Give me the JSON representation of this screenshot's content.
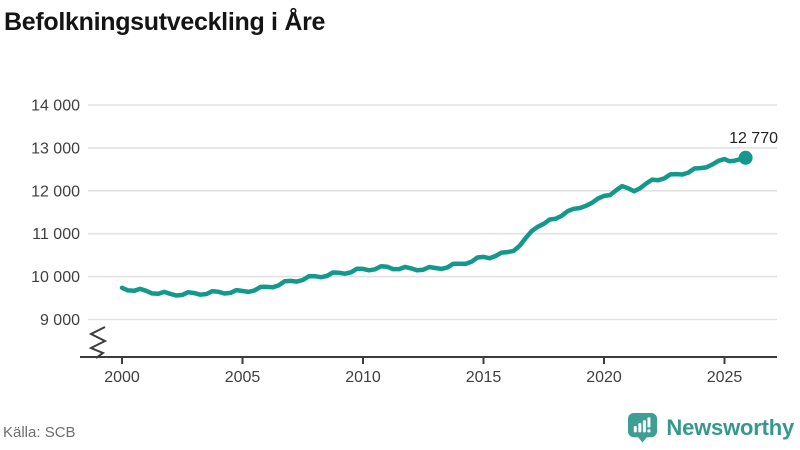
{
  "header": {
    "title": "Befolkningsutveckling i Åre"
  },
  "footer": {
    "source_label": "Källa: SCB",
    "brand_name": "Newsworthy",
    "brand_icon": "bar-chart-speech-bubble-icon"
  },
  "colors": {
    "line_teal": "#13998c",
    "brand_teal": "#35988e",
    "brand_icon_teal": "#3f9e94",
    "grid": "#e2e2e2",
    "axis": "#3c3c3c",
    "tick_text": "#3f3f3f",
    "title_text": "#141414",
    "muted_text": "#6e6e6e"
  },
  "chart_data": {
    "type": "line",
    "title": "Befolkningsutveckling i Åre",
    "xlabel": "",
    "ylabel": "",
    "grid": "horizontal",
    "legend": "none",
    "x_ticks": [
      2000,
      2005,
      2010,
      2015,
      2020,
      2025
    ],
    "xlim": [
      1998.3,
      2027.2
    ],
    "y_ticks": [
      9000,
      10000,
      11000,
      12000,
      13000,
      14000
    ],
    "y_tick_labels": [
      "9 000",
      "10 000",
      "11 000",
      "12 000",
      "13 000",
      "14 000"
    ],
    "ylim": [
      9000,
      14000
    ],
    "axis_break_below_y": 9000,
    "end_label": "12 770",
    "last_value": 12770,
    "series": [
      {
        "name": "Befolkningsutveckling i Åre",
        "points": [
          [
            2000.0,
            9740
          ],
          [
            2000.25,
            9678
          ],
          [
            2000.5,
            9670
          ],
          [
            2000.75,
            9713
          ],
          [
            2001.0,
            9670
          ],
          [
            2001.25,
            9608
          ],
          [
            2001.5,
            9600
          ],
          [
            2001.75,
            9643
          ],
          [
            2002.0,
            9600
          ],
          [
            2002.25,
            9559
          ],
          [
            2002.5,
            9573
          ],
          [
            2002.75,
            9636
          ],
          [
            2003.0,
            9615
          ],
          [
            2003.25,
            9578
          ],
          [
            2003.5,
            9595
          ],
          [
            2003.75,
            9663
          ],
          [
            2004.0,
            9645
          ],
          [
            2004.25,
            9605
          ],
          [
            2004.5,
            9620
          ],
          [
            2004.75,
            9685
          ],
          [
            2005.0,
            9665
          ],
          [
            2005.25,
            9644
          ],
          [
            2005.5,
            9678
          ],
          [
            2005.75,
            9761
          ],
          [
            2006.0,
            9760
          ],
          [
            2006.25,
            9750
          ],
          [
            2006.5,
            9795
          ],
          [
            2006.75,
            9890
          ],
          [
            2007.0,
            9900
          ],
          [
            2007.25,
            9883
          ],
          [
            2007.5,
            9920
          ],
          [
            2007.75,
            10008
          ],
          [
            2008.0,
            10010
          ],
          [
            2008.25,
            9985
          ],
          [
            2008.5,
            10015
          ],
          [
            2008.75,
            10095
          ],
          [
            2009.0,
            10090
          ],
          [
            2009.25,
            10068
          ],
          [
            2009.5,
            10100
          ],
          [
            2009.75,
            10183
          ],
          [
            2010.0,
            10180
          ],
          [
            2010.25,
            10148
          ],
          [
            2010.5,
            10170
          ],
          [
            2010.75,
            10243
          ],
          [
            2011.0,
            10230
          ],
          [
            2011.25,
            10175
          ],
          [
            2011.5,
            10175
          ],
          [
            2011.75,
            10225
          ],
          [
            2012.0,
            10190
          ],
          [
            2012.25,
            10148
          ],
          [
            2012.5,
            10160
          ],
          [
            2012.75,
            10223
          ],
          [
            2013.0,
            10200
          ],
          [
            2013.25,
            10180
          ],
          [
            2013.5,
            10215
          ],
          [
            2013.75,
            10300
          ],
          [
            2014.0,
            10300
          ],
          [
            2014.25,
            10295
          ],
          [
            2014.5,
            10345
          ],
          [
            2014.75,
            10445
          ],
          [
            2015.0,
            10460
          ],
          [
            2015.25,
            10430
          ],
          [
            2015.5,
            10480
          ],
          [
            2015.75,
            10560
          ],
          [
            2016.0,
            10570
          ],
          [
            2016.25,
            10600
          ],
          [
            2016.5,
            10720
          ],
          [
            2016.75,
            10900
          ],
          [
            2017.0,
            11060
          ],
          [
            2017.25,
            11160
          ],
          [
            2017.5,
            11230
          ],
          [
            2017.75,
            11330
          ],
          [
            2018.0,
            11350
          ],
          [
            2018.25,
            11420
          ],
          [
            2018.5,
            11530
          ],
          [
            2018.75,
            11580
          ],
          [
            2019.0,
            11600
          ],
          [
            2019.25,
            11650
          ],
          [
            2019.5,
            11720
          ],
          [
            2019.75,
            11820
          ],
          [
            2020.0,
            11880
          ],
          [
            2020.25,
            11900
          ],
          [
            2020.5,
            12010
          ],
          [
            2020.75,
            12110
          ],
          [
            2021.0,
            12060
          ],
          [
            2021.25,
            11990
          ],
          [
            2021.5,
            12060
          ],
          [
            2021.75,
            12170
          ],
          [
            2022.0,
            12260
          ],
          [
            2022.25,
            12248
          ],
          [
            2022.5,
            12290
          ],
          [
            2022.75,
            12383
          ],
          [
            2023.0,
            12390
          ],
          [
            2023.25,
            12380
          ],
          [
            2023.5,
            12425
          ],
          [
            2023.75,
            12520
          ],
          [
            2024.0,
            12530
          ],
          [
            2024.25,
            12545
          ],
          [
            2024.5,
            12615
          ],
          [
            2024.75,
            12700
          ],
          [
            2025.0,
            12740
          ],
          [
            2025.2,
            12690
          ],
          [
            2025.4,
            12700
          ],
          [
            2025.6,
            12730
          ],
          [
            2025.875,
            12770
          ]
        ]
      }
    ]
  }
}
